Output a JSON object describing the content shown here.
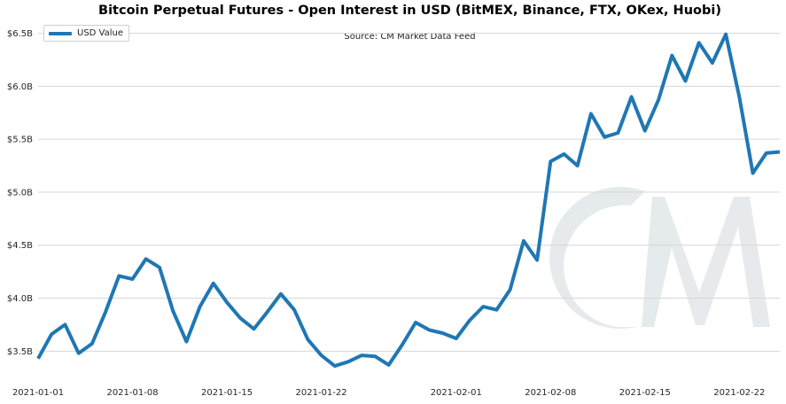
{
  "chart_data": {
    "type": "line",
    "title": "Bitcoin Perpetual Futures - Open Interest in USD (BitMEX, Binance, FTX, OKex, Huobi)",
    "annotation": "Source: CM Market Data Feed",
    "xlabel": "",
    "ylabel": "",
    "legend_position": "top-left",
    "grid": "horizontal",
    "line_color": "#1f77b4",
    "watermark": "CM",
    "x_tick_labels": [
      "2021-01-01",
      "2021-01-08",
      "2021-01-15",
      "2021-01-22",
      "2021-02-01",
      "2021-02-08",
      "2021-02-15",
      "2021-02-22"
    ],
    "y_tick_values": [
      3.5,
      4.0,
      4.5,
      5.0,
      5.5,
      6.0,
      6.5
    ],
    "y_tick_labels": [
      "$3.5B",
      "$4.0B",
      "$4.5B",
      "$5.0B",
      "$5.5B",
      "$6.0B",
      "$6.5B"
    ],
    "ylim": [
      3.21,
      6.63
    ],
    "xlim": [
      "2021-01-01",
      "2021-02-25"
    ],
    "series": [
      {
        "name": "USD Value",
        "x": [
          "2021-01-01",
          "2021-01-02",
          "2021-01-03",
          "2021-01-04",
          "2021-01-05",
          "2021-01-06",
          "2021-01-07",
          "2021-01-08",
          "2021-01-09",
          "2021-01-10",
          "2021-01-11",
          "2021-01-12",
          "2021-01-13",
          "2021-01-14",
          "2021-01-15",
          "2021-01-16",
          "2021-01-17",
          "2021-01-18",
          "2021-01-19",
          "2021-01-20",
          "2021-01-21",
          "2021-01-22",
          "2021-01-23",
          "2021-01-24",
          "2021-01-25",
          "2021-01-26",
          "2021-01-27",
          "2021-01-28",
          "2021-01-29",
          "2021-01-30",
          "2021-01-31",
          "2021-02-01",
          "2021-02-02",
          "2021-02-03",
          "2021-02-04",
          "2021-02-05",
          "2021-02-06",
          "2021-02-07",
          "2021-02-08",
          "2021-02-09",
          "2021-02-10",
          "2021-02-11",
          "2021-02-12",
          "2021-02-13",
          "2021-02-14",
          "2021-02-15",
          "2021-02-16",
          "2021-02-17",
          "2021-02-18",
          "2021-02-19",
          "2021-02-20",
          "2021-02-21",
          "2021-02-22",
          "2021-02-23",
          "2021-02-24",
          "2021-02-25"
        ],
        "values": [
          3.43,
          3.66,
          3.75,
          3.48,
          3.57,
          3.87,
          4.21,
          4.18,
          4.37,
          4.29,
          3.88,
          3.59,
          3.92,
          4.14,
          3.96,
          3.81,
          3.71,
          3.87,
          4.04,
          3.89,
          3.61,
          3.46,
          3.36,
          3.4,
          3.46,
          3.45,
          3.37,
          3.56,
          3.77,
          3.7,
          3.67,
          3.62,
          3.79,
          3.92,
          3.89,
          4.08,
          4.54,
          4.36,
          5.29,
          5.36,
          5.25,
          5.74,
          5.52,
          5.56,
          5.9,
          5.58,
          5.87,
          6.29,
          6.05,
          6.41,
          6.22,
          6.49,
          5.9,
          5.18,
          5.37,
          5.38
        ]
      }
    ]
  }
}
